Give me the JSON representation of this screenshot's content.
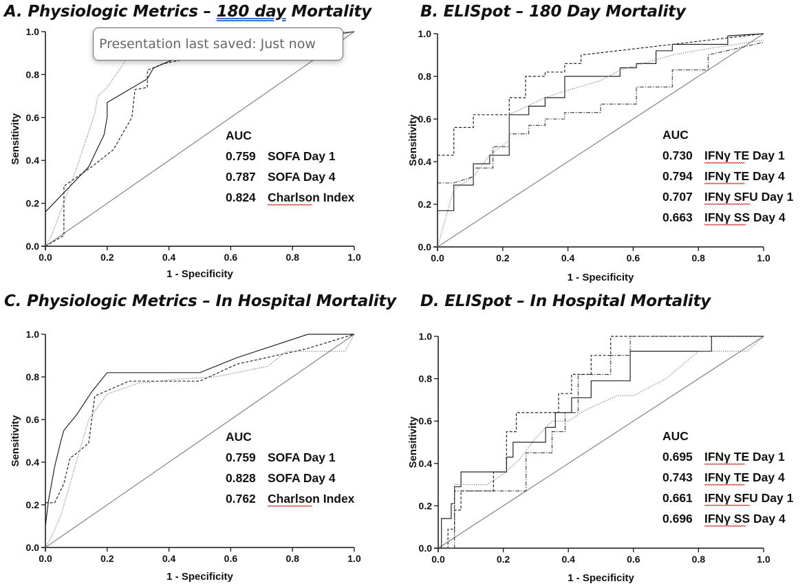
{
  "tooltip": {
    "text": "Presentation last saved: Just now"
  },
  "panels": [
    {
      "title_prefix": "A. Physiologic Metrics – ",
      "title_highlight": "180 day",
      "title_suffix": " Mortality"
    },
    {
      "title_prefix": "B. ELISpot – 180 Day Mortality",
      "title_highlight": "",
      "title_suffix": ""
    },
    {
      "title_prefix": "C. Physiologic Metrics – In Hospital Mortality",
      "title_highlight": "",
      "title_suffix": ""
    },
    {
      "title_prefix": "D. ELISpot – In Hospital Mortality",
      "title_highlight": "",
      "title_suffix": ""
    }
  ],
  "chart_data": [
    {
      "type": "line",
      "title": "A. Physiologic Metrics – 180 day Mortality",
      "xlabel": "1 - Specificity",
      "ylabel": "Sensitivity",
      "xlim": [
        0,
        1
      ],
      "ylim": [
        0,
        1
      ],
      "xticks": [
        "0.0",
        "0.2",
        "0.4",
        "0.6",
        "0.8",
        "1.0"
      ],
      "yticks": [
        "0.0",
        "0.2",
        "0.4",
        "0.6",
        "0.8",
        "1.0"
      ],
      "auc_header": "AUC",
      "legend": [
        {
          "value": "0.759",
          "label": "SOFA Day 1",
          "underline": false
        },
        {
          "value": "0.787",
          "label": "SOFA Day 4",
          "underline": false
        },
        {
          "value": "0.824",
          "label": "Charlson Index",
          "underline": true
        }
      ],
      "series": [
        {
          "style": "solid",
          "x": [
            0,
            0.14,
            0.19,
            0.2,
            0.2,
            0.33,
            0.35,
            0.43,
            1
          ],
          "y": [
            0.16,
            0.37,
            0.52,
            0.6,
            0.67,
            0.78,
            0.83,
            0.88,
            1
          ]
        },
        {
          "style": "dashed",
          "x": [
            0,
            0.06,
            0.06,
            0.15,
            0.22,
            0.28,
            0.29,
            0.33,
            0.33,
            0.38,
            0.48,
            1
          ],
          "y": [
            0,
            0.05,
            0.28,
            0.37,
            0.45,
            0.6,
            0.73,
            0.74,
            0.82,
            0.85,
            0.88,
            1
          ]
        },
        {
          "style": "dotted",
          "x": [
            0,
            0.02,
            0.1,
            0.16,
            0.17,
            0.2,
            0.3,
            0.4,
            1
          ],
          "y": [
            0,
            0.05,
            0.36,
            0.62,
            0.7,
            0.74,
            0.95,
            0.98,
            1
          ]
        }
      ]
    },
    {
      "type": "line",
      "title": "B. ELISpot – 180 Day Mortality",
      "xlabel": "1 - Specificity",
      "ylabel": "Sensitivity",
      "xlim": [
        0,
        1
      ],
      "ylim": [
        0,
        1
      ],
      "xticks": [
        "0.0",
        "0.2",
        "0.4",
        "0.6",
        "0.8",
        "1.0"
      ],
      "yticks": [
        "0.0",
        "0.2",
        "0.4",
        "0.6",
        "0.8",
        "1.0"
      ],
      "auc_header": "AUC",
      "legend": [
        {
          "value": "0.730",
          "label": "IFNγ TE Day 1",
          "underline": true
        },
        {
          "value": "0.794",
          "label": "IFNγ TE Day 4",
          "underline": true
        },
        {
          "value": "0.707",
          "label": "IFNγ SFU Day 1",
          "underline": true
        },
        {
          "value": "0.663",
          "label": "IFNγ SS Day 4",
          "underline": true
        }
      ],
      "series": [
        {
          "style": "solid",
          "x": [
            0,
            0.05,
            0.05,
            0.11,
            0.11,
            0.16,
            0.16,
            0.22,
            0.22,
            0.28,
            0.28,
            0.33,
            0.33,
            0.39,
            0.39,
            0.56,
            0.56,
            0.61,
            0.61,
            0.67,
            0.67,
            0.72,
            0.72,
            0.89,
            0.89,
            1
          ],
          "y": [
            0.17,
            0.17,
            0.29,
            0.29,
            0.39,
            0.39,
            0.43,
            0.43,
            0.62,
            0.62,
            0.66,
            0.66,
            0.7,
            0.7,
            0.8,
            0.8,
            0.84,
            0.84,
            0.86,
            0.86,
            0.92,
            0.92,
            0.95,
            0.95,
            0.99,
            1
          ]
        },
        {
          "style": "dashed",
          "x": [
            0,
            0.05,
            0.05,
            0.11,
            0.11,
            0.22,
            0.22,
            0.27,
            0.27,
            0.33,
            0.33,
            0.39,
            0.39,
            0.44,
            0.44,
            1
          ],
          "y": [
            0.43,
            0.43,
            0.56,
            0.56,
            0.62,
            0.62,
            0.7,
            0.7,
            0.8,
            0.8,
            0.82,
            0.82,
            0.86,
            0.86,
            0.9,
            1
          ]
        },
        {
          "style": "dotted",
          "x": [
            0,
            0.05,
            0.11,
            0.16,
            0.22,
            0.22,
            0.33,
            0.39,
            0.5,
            0.56,
            0.72,
            0.83,
            1
          ],
          "y": [
            0,
            0.27,
            0.33,
            0.43,
            0.5,
            0.62,
            0.7,
            0.73,
            0.78,
            0.83,
            0.9,
            0.93,
            0.97
          ]
        },
        {
          "style": "dashdot",
          "x": [
            0,
            0.05,
            0.11,
            0.11,
            0.17,
            0.17,
            0.22,
            0.22,
            0.28,
            0.28,
            0.33,
            0.33,
            0.39,
            0.39,
            0.5,
            0.5,
            0.61,
            0.61,
            0.72,
            0.72,
            0.83,
            0.83,
            1
          ],
          "y": [
            0.3,
            0.3,
            0.33,
            0.37,
            0.37,
            0.47,
            0.47,
            0.53,
            0.53,
            0.57,
            0.57,
            0.6,
            0.6,
            0.63,
            0.63,
            0.67,
            0.67,
            0.75,
            0.75,
            0.83,
            0.83,
            0.9,
            0.96
          ]
        }
      ]
    },
    {
      "type": "line",
      "title": "C. Physiologic Metrics – In Hospital Mortality",
      "xlabel": "1 - Specificity",
      "ylabel": "Sensitivity",
      "xlim": [
        0,
        1
      ],
      "ylim": [
        0,
        1
      ],
      "xticks": [
        "0.0",
        "0.2",
        "0.4",
        "0.6",
        "0.8",
        "1.0"
      ],
      "yticks": [
        "0.0",
        "0.2",
        "0.4",
        "0.6",
        "0.8",
        "1.0"
      ],
      "auc_header": "AUC",
      "legend": [
        {
          "value": "0.759",
          "label": "SOFA Day 1",
          "underline": false
        },
        {
          "value": "0.828",
          "label": "SOFA Day 4",
          "underline": false
        },
        {
          "value": "0.762",
          "label": "Charlson Index",
          "underline": true
        }
      ],
      "series": [
        {
          "style": "solid",
          "x": [
            0,
            0.01,
            0.03,
            0.05,
            0.06,
            0.1,
            0.15,
            0.2,
            0.21,
            0.5,
            0.62,
            0.85,
            1
          ],
          "y": [
            0.1,
            0.22,
            0.38,
            0.5,
            0.55,
            0.62,
            0.73,
            0.82,
            0.82,
            0.82,
            0.89,
            1,
            1
          ]
        },
        {
          "style": "dashed",
          "x": [
            0,
            0.03,
            0.06,
            0.08,
            0.1,
            0.14,
            0.16,
            0.27,
            0.3,
            0.5,
            0.62,
            0.84,
            1
          ],
          "y": [
            0.21,
            0.21,
            0.3,
            0.42,
            0.44,
            0.49,
            0.71,
            0.78,
            0.78,
            0.78,
            0.86,
            0.93,
            1
          ]
        },
        {
          "style": "dotted",
          "x": [
            0,
            0.02,
            0.05,
            0.1,
            0.14,
            0.2,
            0.3,
            0.43,
            0.55,
            0.72,
            0.78,
            0.97,
            1
          ],
          "y": [
            0,
            0.05,
            0.15,
            0.4,
            0.6,
            0.72,
            0.77,
            0.79,
            0.8,
            0.85,
            0.92,
            0.92,
            1
          ]
        }
      ]
    },
    {
      "type": "line",
      "title": "D. ELISpot – In Hospital Mortality",
      "xlabel": "1 - Specificity",
      "ylabel": "Sensitivity",
      "xlim": [
        0,
        1
      ],
      "ylim": [
        0,
        1
      ],
      "xticks": [
        "0.0",
        "0.2",
        "0.4",
        "0.6",
        "0.8",
        "1.0"
      ],
      "yticks": [
        "0.0",
        "0.2",
        "0.4",
        "0.6",
        "0.8",
        "1.0"
      ],
      "auc_header": "AUC",
      "legend": [
        {
          "value": "0.695",
          "label": "IFNγ TE Day 1",
          "underline": true
        },
        {
          "value": "0.743",
          "label": "IFNγ TE Day 4",
          "underline": true
        },
        {
          "value": "0.661",
          "label": "IFNγ SFU Day 1",
          "underline": true
        },
        {
          "value": "0.696",
          "label": "IFNγ SS Day 4",
          "underline": true
        }
      ],
      "series": [
        {
          "style": "solid",
          "x": [
            0,
            0.01,
            0.01,
            0.04,
            0.04,
            0.05,
            0.05,
            0.07,
            0.07,
            0.21,
            0.21,
            0.23,
            0.23,
            0.28,
            0.28,
            0.33,
            0.33,
            0.36,
            0.36,
            0.41,
            0.41,
            0.47,
            0.47,
            0.59,
            0.59,
            0.84,
            0.84,
            1
          ],
          "y": [
            0,
            0,
            0.14,
            0.14,
            0.21,
            0.21,
            0.29,
            0.29,
            0.36,
            0.36,
            0.43,
            0.43,
            0.5,
            0.5,
            0.5,
            0.5,
            0.57,
            0.57,
            0.64,
            0.64,
            0.71,
            0.71,
            0.79,
            0.79,
            0.93,
            0.93,
            1,
            1
          ]
        },
        {
          "style": "dashed",
          "x": [
            0,
            0.03,
            0.03,
            0.05,
            0.05,
            0.07,
            0.07,
            0.17,
            0.17,
            0.21,
            0.21,
            0.24,
            0.24,
            0.3,
            0.3,
            0.37,
            0.37,
            0.41,
            0.41,
            0.47,
            0.47,
            0.53,
            0.53,
            0.59,
            0.59,
            0.72,
            0.72,
            1
          ],
          "y": [
            0,
            0,
            0.09,
            0.09,
            0.18,
            0.18,
            0.27,
            0.27,
            0.36,
            0.36,
            0.55,
            0.55,
            0.64,
            0.64,
            0.64,
            0.64,
            0.73,
            0.73,
            0.82,
            0.82,
            0.91,
            0.91,
            1,
            1,
            1,
            1,
            1,
            1
          ]
        },
        {
          "style": "dotted",
          "x": [
            0,
            0.05,
            0.05,
            0.1,
            0.15,
            0.2,
            0.25,
            0.3,
            0.35,
            0.4,
            0.45,
            0.55,
            0.6,
            0.7,
            0.8,
            0.95,
            1
          ],
          "y": [
            0,
            0.05,
            0.3,
            0.3,
            0.3,
            0.35,
            0.42,
            0.52,
            0.6,
            0.6,
            0.65,
            0.72,
            0.72,
            0.8,
            0.93,
            0.93,
            1
          ]
        },
        {
          "style": "dashdot",
          "x": [
            0,
            0.05,
            0.05,
            0.14,
            0.14,
            0.27,
            0.27,
            0.35,
            0.35,
            0.39,
            0.39,
            0.43,
            0.43,
            0.53,
            0.53,
            0.59,
            0.59,
            0.84,
            0.84,
            1
          ],
          "y": [
            0,
            0,
            0.27,
            0.27,
            0.27,
            0.27,
            0.45,
            0.45,
            0.55,
            0.55,
            0.64,
            0.64,
            0.82,
            0.82,
            0.91,
            0.91,
            1,
            1,
            1,
            1
          ]
        }
      ]
    }
  ]
}
